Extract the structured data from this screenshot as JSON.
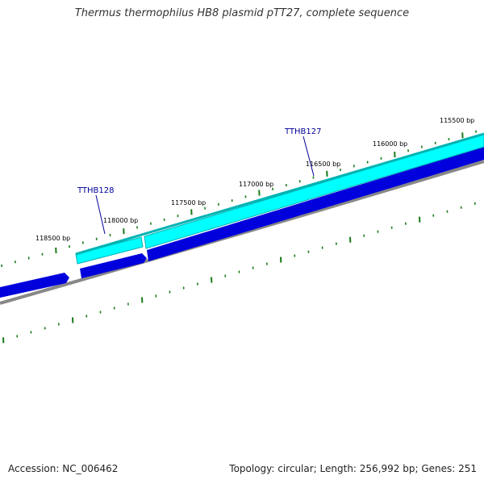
{
  "map": {
    "title": "Thermus thermophilus HB8 plasmid pTT27, complete sequence",
    "tick_labels": [
      "115500 bp",
      "116000 bp",
      "116500 bp",
      "117000 bp",
      "117500 bp",
      "118000 bp",
      "118500 bp"
    ],
    "genes": [
      {
        "label": "TTHB127",
        "color": "#000099"
      },
      {
        "label": "TTHB128",
        "color": "#000099"
      }
    ],
    "colors": {
      "forward_strand": "#00ffff",
      "forward_strand_edge": "#00b3b3",
      "reverse_strand": "#0000dd",
      "backbone": "#888888",
      "ticks": "#1a7a1a",
      "gene_label": "#000099"
    }
  },
  "footer": {
    "accession": "Accession: NC_006462",
    "summary": "Topology: circular; Length: 256,992 bp; Genes: 251"
  }
}
